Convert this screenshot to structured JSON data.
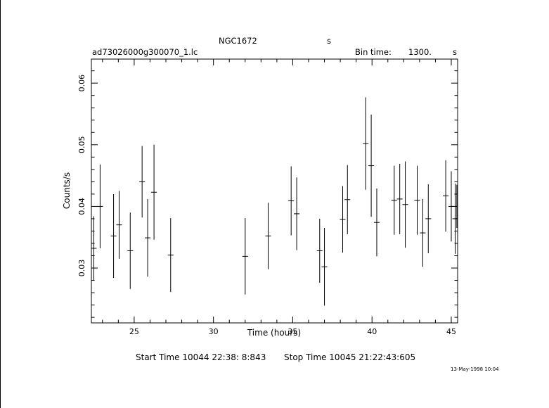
{
  "header": {
    "object": "NGC1672",
    "unit_s": "s",
    "filename": "ad73026000g300070_1.lc",
    "bin_label": "Bin time:",
    "bin_value": "1300.",
    "bin_unit": "s"
  },
  "footer": {
    "start_label": "Start Time",
    "start_value": "10044 22:38: 8:843",
    "stop_label": "Stop Time",
    "stop_value": "10045 21:22:43:605",
    "timestamp": "13-May-1998 10:04"
  },
  "chart_data": {
    "type": "scatter",
    "title": "NGC1672",
    "xlabel": "Time (hours)",
    "ylabel": "Counts/s",
    "xlim": [
      22.3,
      45.4
    ],
    "ylim": [
      0.0211,
      0.0639
    ],
    "x_ticks": [
      25,
      30,
      35,
      40,
      45
    ],
    "y_ticks": [
      0.03,
      0.04,
      0.05,
      0.06
    ],
    "x_tick_labels": [
      "25",
      "30",
      "35",
      "40",
      "45"
    ],
    "y_tick_labels": [
      "0.03",
      "0.04",
      "0.05",
      "0.06"
    ],
    "grid": false,
    "series": [
      {
        "points": [
          {
            "x": 22.45,
            "y": 0.0332,
            "yerr": 0.0052,
            "xerr": 0.18
          },
          {
            "x": 22.85,
            "y": 0.04,
            "yerr": 0.0068,
            "xerr": 0.18
          },
          {
            "x": 23.7,
            "y": 0.0352,
            "yerr": 0.0068,
            "xerr": 0.18
          },
          {
            "x": 24.05,
            "y": 0.037,
            "yerr": 0.0055,
            "xerr": 0.18
          },
          {
            "x": 24.75,
            "y": 0.0328,
            "yerr": 0.0062,
            "xerr": 0.18
          },
          {
            "x": 25.5,
            "y": 0.044,
            "yerr": 0.0058,
            "xerr": 0.18
          },
          {
            "x": 25.85,
            "y": 0.0349,
            "yerr": 0.0063,
            "xerr": 0.18
          },
          {
            "x": 26.25,
            "y": 0.0423,
            "yerr": 0.0077,
            "xerr": 0.18
          },
          {
            "x": 27.3,
            "y": 0.0321,
            "yerr": 0.006,
            "xerr": 0.18
          },
          {
            "x": 32.0,
            "y": 0.0319,
            "yerr": 0.0062,
            "xerr": 0.18
          },
          {
            "x": 33.45,
            "y": 0.0352,
            "yerr": 0.0054,
            "xerr": 0.18
          },
          {
            "x": 34.9,
            "y": 0.0409,
            "yerr": 0.0056,
            "xerr": 0.18
          },
          {
            "x": 35.25,
            "y": 0.0388,
            "yerr": 0.0059,
            "xerr": 0.18
          },
          {
            "x": 36.7,
            "y": 0.0328,
            "yerr": 0.0052,
            "xerr": 0.18
          },
          {
            "x": 37.0,
            "y": 0.0302,
            "yerr": 0.0063,
            "xerr": 0.18
          },
          {
            "x": 38.15,
            "y": 0.0379,
            "yerr": 0.0054,
            "xerr": 0.18
          },
          {
            "x": 38.45,
            "y": 0.0411,
            "yerr": 0.0056,
            "xerr": 0.18
          },
          {
            "x": 39.6,
            "y": 0.0502,
            "yerr": 0.0075,
            "xerr": 0.18
          },
          {
            "x": 39.95,
            "y": 0.0466,
            "yerr": 0.0083,
            "xerr": 0.18
          },
          {
            "x": 40.3,
            "y": 0.0374,
            "yerr": 0.0055,
            "xerr": 0.18
          },
          {
            "x": 41.4,
            "y": 0.041,
            "yerr": 0.0056,
            "xerr": 0.18
          },
          {
            "x": 41.75,
            "y": 0.0412,
            "yerr": 0.0057,
            "xerr": 0.18
          },
          {
            "x": 42.1,
            "y": 0.0403,
            "yerr": 0.007,
            "xerr": 0.18
          },
          {
            "x": 42.85,
            "y": 0.041,
            "yerr": 0.0056,
            "xerr": 0.18
          },
          {
            "x": 43.2,
            "y": 0.0357,
            "yerr": 0.0055,
            "xerr": 0.18
          },
          {
            "x": 43.55,
            "y": 0.038,
            "yerr": 0.0056,
            "xerr": 0.18
          },
          {
            "x": 44.65,
            "y": 0.0417,
            "yerr": 0.0058,
            "xerr": 0.18
          },
          {
            "x": 45.0,
            "y": 0.04,
            "yerr": 0.0057,
            "xerr": 0.18
          },
          {
            "x": 45.25,
            "y": 0.038,
            "yerr": 0.0057,
            "xerr": 0.18
          },
          {
            "x": 45.35,
            "y": 0.04,
            "yerr": 0.0035,
            "xerr": 0.08
          }
        ]
      }
    ]
  }
}
